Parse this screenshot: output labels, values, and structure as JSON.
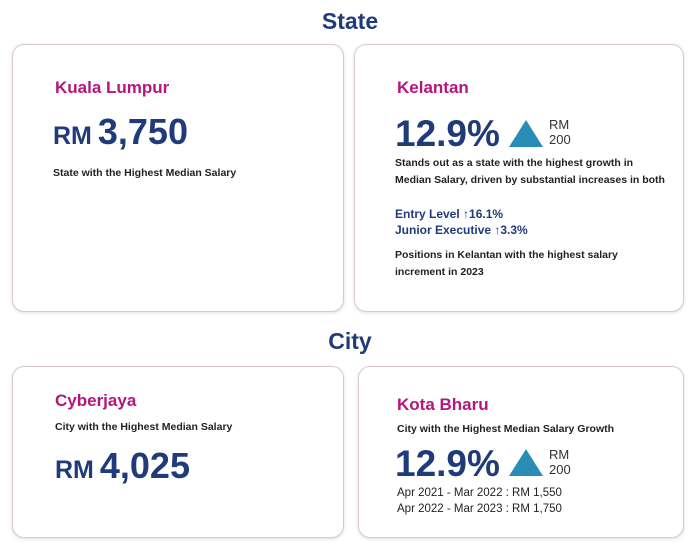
{
  "state_section": {
    "title": "State",
    "kl_card": {
      "place": "Kuala Lumpur",
      "currency": "RM",
      "amount": "3,750",
      "caption": "State with the Highest Median Salary"
    },
    "kelantan_card": {
      "place": "Kelantan",
      "growth": "12.9%",
      "rm_label": "RM",
      "rm_value": "200",
      "desc_line1": "Stands out as a state with the highest growth in",
      "desc_line2": "Median Salary, driven by substantial increases in both",
      "entry_level": "Entry Level ↑16.1%",
      "junior_exec": "Junior Executive ↑3.3%",
      "note_line1": "Positions in Kelantan with the highest salary",
      "note_line2": "increment in 2023"
    }
  },
  "city_section": {
    "title": "City",
    "cyberjaya_card": {
      "place": "Cyberjaya",
      "caption": "City with the Highest Median Salary",
      "currency": "RM",
      "amount": "4,025"
    },
    "kota_bharu_card": {
      "place": "Kota Bharu",
      "caption": "City with the Highest Median Salary Growth",
      "growth": "12.9%",
      "rm_label": "RM",
      "rm_value": "200",
      "period1": "Apr 2021 - Mar 2022 : RM 1,550",
      "period2": "Apr 2022 - Mar 2023 : RM 1,750"
    }
  },
  "colors": {
    "heading": "#1f3b7a",
    "place": "#b5157d",
    "triangle": "#2a8db5",
    "border": "#d8c8d2"
  }
}
